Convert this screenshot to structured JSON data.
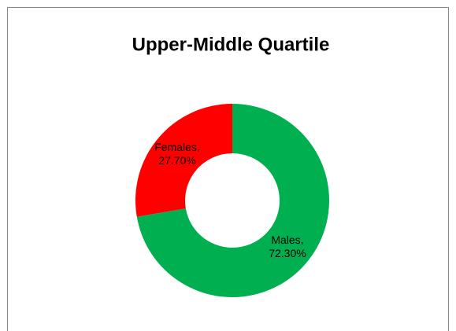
{
  "chart_data": {
    "type": "donut",
    "title": "Upper-Middle Quartile",
    "categories": [
      "Males",
      "Females"
    ],
    "values": [
      72.3,
      27.7
    ],
    "value_labels": [
      "72.30%",
      "27.70%"
    ],
    "colors": [
      "#00b050",
      "#ff0000"
    ]
  }
}
